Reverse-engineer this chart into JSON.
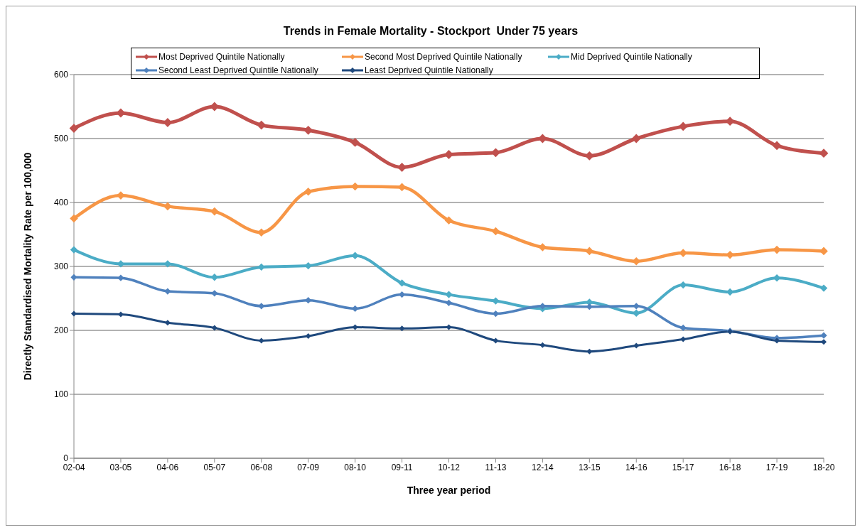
{
  "chart_data": {
    "type": "line",
    "title": "Trends in Female Mortality - Stockport  Under 75 years",
    "xlabel": "Three year period",
    "ylabel": "Directly Standardised Mortality Rate per 100,000",
    "categories": [
      "02-04",
      "03-05",
      "04-06",
      "05-07",
      "06-08",
      "07-09",
      "08-10",
      "09-11",
      "10-12",
      "11-13",
      "12-14",
      "13-15",
      "14-16",
      "15-17",
      "16-18",
      "17-19",
      "18-20"
    ],
    "series": [
      {
        "name": "Most Deprived Quintile Nationally",
        "color": "#c0504d",
        "values": [
          516,
          540,
          525,
          550,
          521,
          513,
          494,
          455,
          475,
          478,
          500,
          473,
          500,
          519,
          527,
          489,
          477
        ]
      },
      {
        "name": "Second Most Deprived Quintile Nationally",
        "color": "#f79646",
        "values": [
          375,
          411,
          394,
          386,
          353,
          417,
          425,
          424,
          372,
          355,
          330,
          324,
          308,
          321,
          318,
          326,
          324
        ]
      },
      {
        "name": "Mid Deprived Quintile Nationally",
        "color": "#4bacc6",
        "values": [
          326,
          304,
          304,
          283,
          299,
          301,
          317,
          274,
          256,
          246,
          234,
          244,
          227,
          271,
          260,
          282,
          266
        ]
      },
      {
        "name": "Second Least Deprived Quintile Nationally",
        "color": "#4f81bd",
        "values": [
          283,
          282,
          261,
          258,
          238,
          247,
          234,
          256,
          243,
          226,
          238,
          237,
          238,
          204,
          199,
          188,
          192
        ]
      },
      {
        "name": "Least Deprived Quintile Nationally",
        "color": "#1f497d",
        "values": [
          226,
          225,
          212,
          204,
          184,
          191,
          205,
          203,
          205,
          184,
          177,
          167,
          176,
          186,
          198,
          184,
          182
        ]
      }
    ],
    "ylim": [
      0,
      600
    ],
    "yticks": [
      0,
      100,
      200,
      300,
      400,
      500,
      600
    ],
    "grid": "y",
    "legend": "top",
    "marker": "diamond",
    "line_style": "solid"
  }
}
